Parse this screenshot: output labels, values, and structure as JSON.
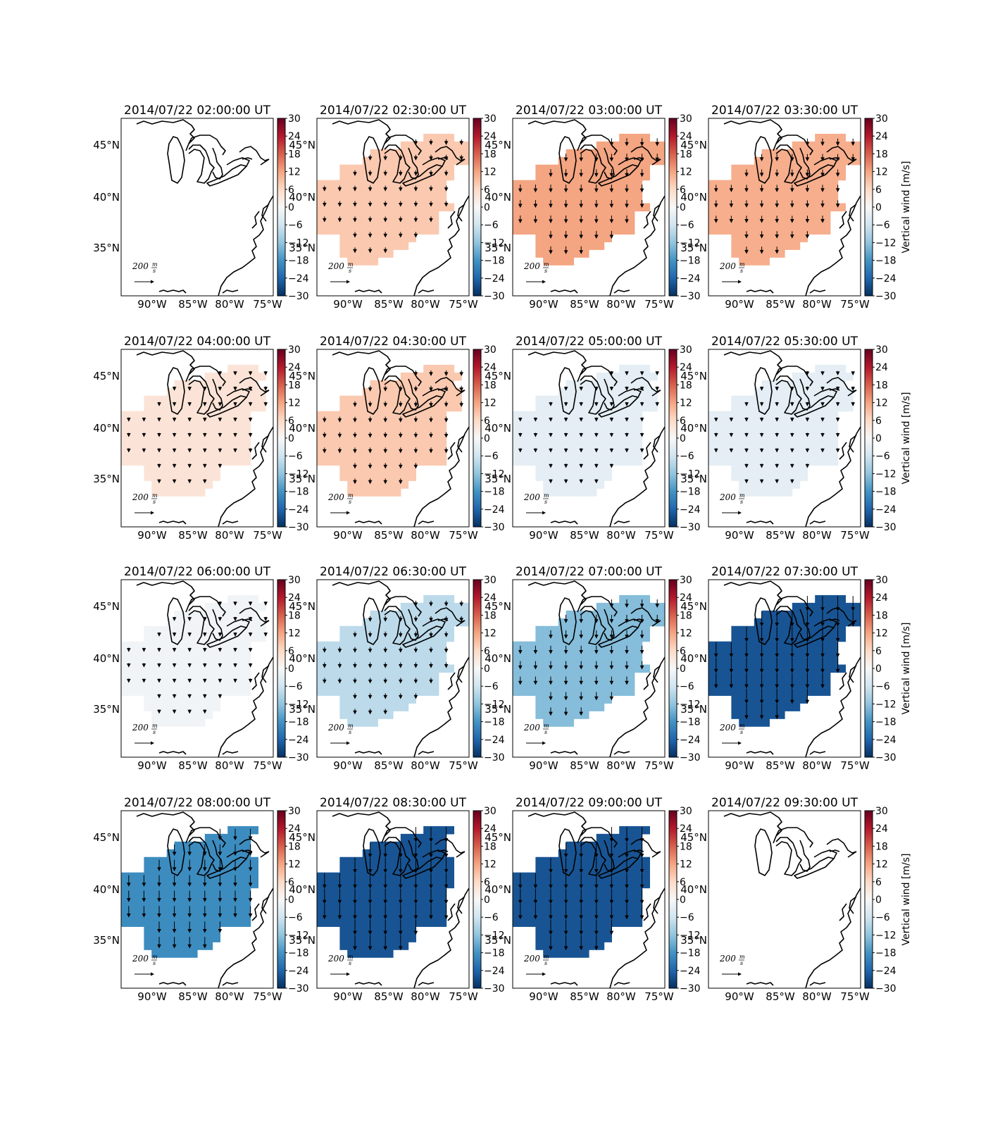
{
  "figure": {
    "colorbar_label": "Vertical wind [m/s]",
    "colorbar_ticks": [
      "30",
      "24",
      "18",
      "12",
      "6",
      "0",
      "−6",
      "−12",
      "−18",
      "−24",
      "−30"
    ],
    "colorbar_range": [
      -30,
      30
    ],
    "colormap": [
      "#053061",
      "#2166ac",
      "#4393c3",
      "#92c5de",
      "#d1e5f0",
      "#f7f7f7",
      "#fddbc7",
      "#f4a582",
      "#d6604d",
      "#b2182b",
      "#67001f"
    ],
    "lat_labels": [
      "45°N",
      "40°N",
      "35°N"
    ],
    "lon_labels": [
      "90°W",
      "85°W",
      "80°W",
      "75°W"
    ],
    "scale_label": "200",
    "scale_unit_num": "m",
    "scale_unit_den": "s"
  },
  "chart_data": [
    {
      "type": "heatmap",
      "title": "2014/07/22 02:00:00 UT",
      "value": null,
      "shape": "none"
    },
    {
      "type": "heatmap",
      "title": "2014/07/22 02:30:00 UT",
      "value": 8,
      "shape": "A"
    },
    {
      "type": "heatmap",
      "title": "2014/07/22 03:00:00 UT",
      "value": 12,
      "shape": "A"
    },
    {
      "type": "heatmap",
      "title": "2014/07/22 03:30:00 UT",
      "value": 11,
      "shape": "A"
    },
    {
      "type": "heatmap",
      "title": "2014/07/22 04:00:00 UT",
      "value": 4,
      "shape": "B"
    },
    {
      "type": "heatmap",
      "title": "2014/07/22 04:30:00 UT",
      "value": 8,
      "shape": "B"
    },
    {
      "type": "heatmap",
      "title": "2014/07/22 05:00:00 UT",
      "value": -3,
      "shape": "B"
    },
    {
      "type": "heatmap",
      "title": "2014/07/22 05:30:00 UT",
      "value": -3,
      "shape": "B"
    },
    {
      "type": "heatmap",
      "title": "2014/07/22 06:00:00 UT",
      "value": -1,
      "shape": "B"
    },
    {
      "type": "heatmap",
      "title": "2014/07/22 06:30:00 UT",
      "value": -8,
      "shape": "A"
    },
    {
      "type": "heatmap",
      "title": "2014/07/22 07:00:00 UT",
      "value": -13,
      "shape": "A"
    },
    {
      "type": "heatmap",
      "title": "2014/07/22 07:30:00 UT",
      "value": -26,
      "shape": "A"
    },
    {
      "type": "heatmap",
      "title": "2014/07/22 08:00:00 UT",
      "value": -19,
      "shape": "C"
    },
    {
      "type": "heatmap",
      "title": "2014/07/22 08:30:00 UT",
      "value": -26,
      "shape": "C"
    },
    {
      "type": "heatmap",
      "title": "2014/07/22 09:00:00 UT",
      "value": -26,
      "shape": "C"
    },
    {
      "type": "heatmap",
      "title": "2014/07/22 09:30:00 UT",
      "value": null,
      "shape": "none"
    }
  ]
}
